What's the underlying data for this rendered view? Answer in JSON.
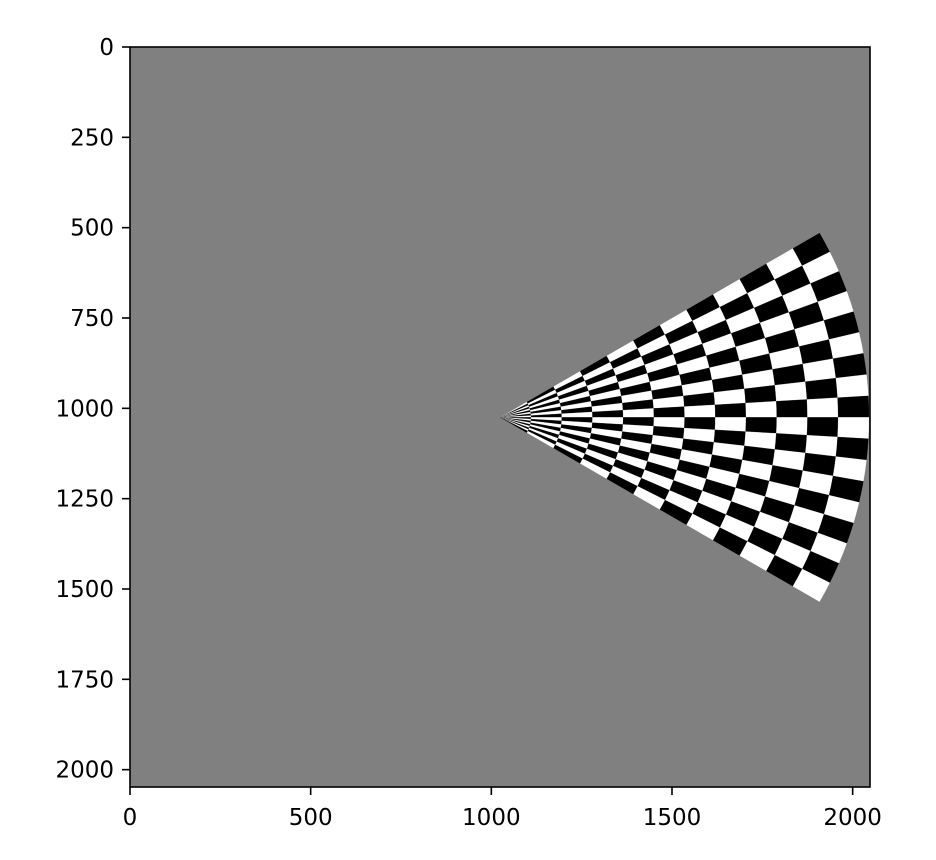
{
  "chart_data": {
    "type": "heatmap",
    "title": "",
    "xlabel": "",
    "ylabel": "",
    "xlim": [
      0,
      2048
    ],
    "ylim": [
      2048,
      0
    ],
    "y_inverted": true,
    "x_ticks": [
      0,
      500,
      1000,
      1500,
      2000
    ],
    "y_ticks": [
      0,
      250,
      500,
      750,
      1000,
      1250,
      1500,
      1750,
      2000
    ],
    "grid": false,
    "legend": "none",
    "background_value_color": "#808080",
    "content": {
      "pattern": "polar-checkerboard-fan",
      "apex": [
        1025,
        1025
      ],
      "outer_radius": 1020,
      "half_angle_deg": 30,
      "angular_sectors": 18,
      "radial_rings": 12,
      "colors": [
        "#ffffff",
        "#000000"
      ]
    }
  }
}
